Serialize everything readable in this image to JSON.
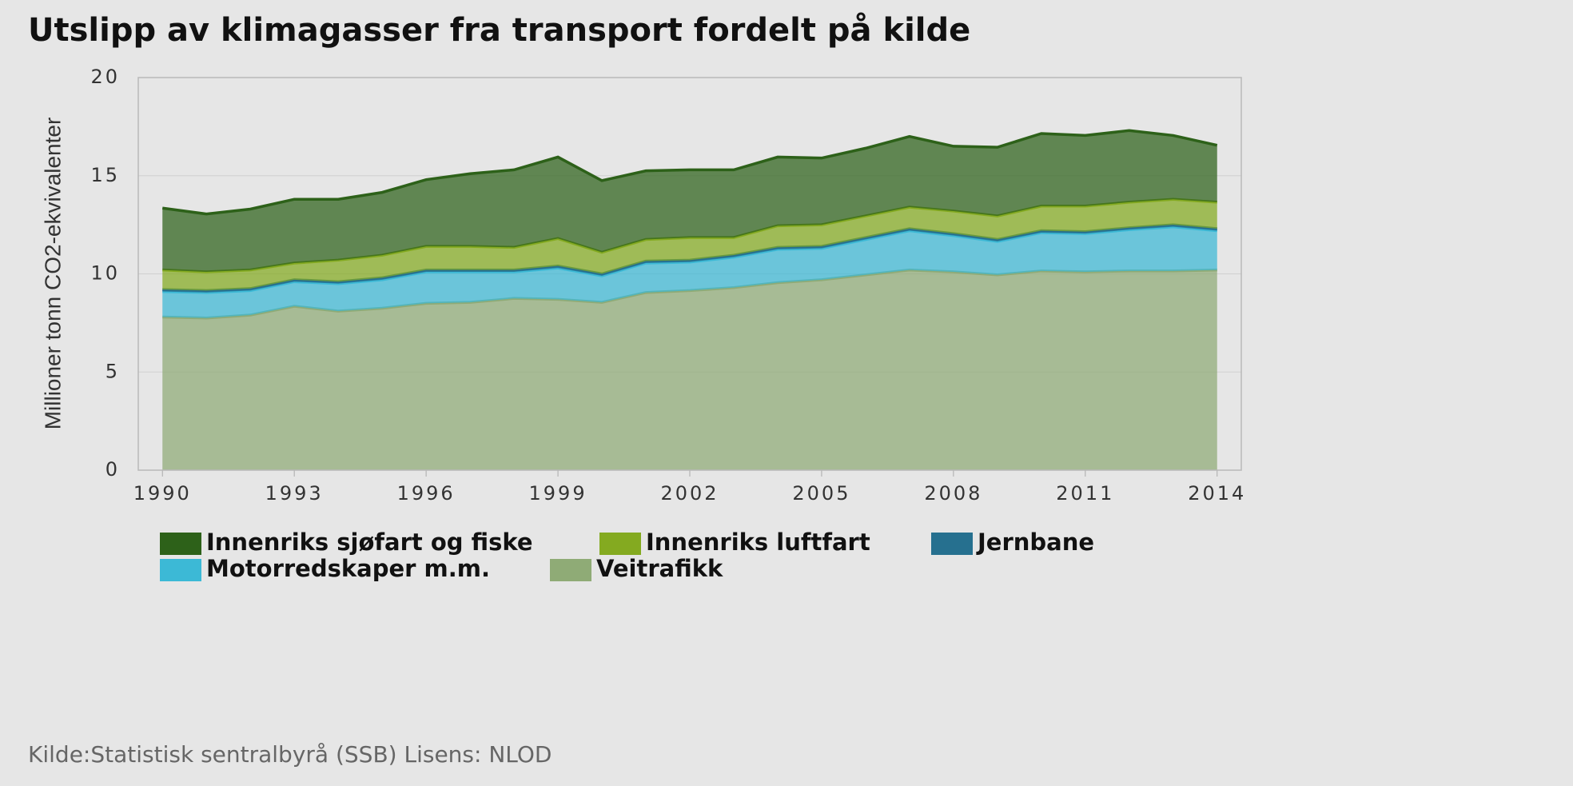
{
  "chart_data": {
    "type": "stacked_area",
    "title": "Utslipp av klimagasser fra transport fordelt på kilde",
    "y_label": "Millioner tonn CO2-ekvivalenter",
    "source": "Kilde:Statistisk sentralbyrå (SSB) Lisens: NLOD",
    "x": [
      1990,
      1991,
      1992,
      1993,
      1994,
      1995,
      1996,
      1997,
      1998,
      1999,
      2000,
      2001,
      2002,
      2003,
      2004,
      2005,
      2006,
      2007,
      2008,
      2009,
      2010,
      2011,
      2012,
      2013,
      2014
    ],
    "xlim": [
      1989.45,
      2014.55
    ],
    "xticks": [
      1990,
      1993,
      1996,
      1999,
      2002,
      2005,
      2008,
      2011,
      2014
    ],
    "ylim": [
      0,
      20
    ],
    "yticks": [
      0,
      5,
      10,
      15,
      20
    ],
    "series": [
      {
        "name": "Veitrafikk",
        "color": "#8fab76",
        "values": [
          7.8,
          7.75,
          7.9,
          8.35,
          8.1,
          8.25,
          8.5,
          8.55,
          8.75,
          8.7,
          8.55,
          9.05,
          9.15,
          9.3,
          9.55,
          9.7,
          9.95,
          10.2,
          10.1,
          9.95,
          10.15,
          10.1,
          10.15,
          10.15,
          10.2
        ]
      },
      {
        "name": "Motorredskaper m.m.",
        "color": "#3cb9d6",
        "values": [
          1.3,
          1.3,
          1.25,
          1.25,
          1.4,
          1.45,
          1.6,
          1.55,
          1.35,
          1.6,
          1.35,
          1.5,
          1.45,
          1.55,
          1.7,
          1.6,
          1.8,
          2.0,
          1.85,
          1.7,
          1.95,
          1.95,
          2.1,
          2.25,
          2.0
        ]
      },
      {
        "name": "Jernbane",
        "color": "#26708f",
        "values": [
          0.1,
          0.1,
          0.1,
          0.1,
          0.1,
          0.1,
          0.1,
          0.1,
          0.1,
          0.1,
          0.1,
          0.1,
          0.1,
          0.1,
          0.1,
          0.1,
          0.1,
          0.1,
          0.1,
          0.1,
          0.1,
          0.1,
          0.1,
          0.1,
          0.1
        ]
      },
      {
        "name": "Innenriks luftfart",
        "color": "#84aa20",
        "values": [
          1.0,
          0.95,
          0.95,
          0.85,
          1.1,
          1.15,
          1.2,
          1.2,
          1.15,
          1.4,
          1.1,
          1.1,
          1.15,
          0.9,
          1.1,
          1.1,
          1.1,
          1.1,
          1.15,
          1.2,
          1.25,
          1.3,
          1.3,
          1.3,
          1.35
        ]
      },
      {
        "name": "Innenriks sjøfart og fiske",
        "color": "#2d6119",
        "values": [
          3.15,
          2.95,
          3.1,
          3.25,
          3.1,
          3.2,
          3.4,
          3.7,
          3.95,
          4.15,
          3.65,
          3.5,
          3.45,
          3.45,
          3.5,
          3.4,
          3.45,
          3.6,
          3.3,
          3.5,
          3.7,
          3.6,
          3.65,
          3.25,
          2.9
        ]
      }
    ],
    "legend_order": [
      4,
      3,
      2,
      1,
      0
    ]
  }
}
